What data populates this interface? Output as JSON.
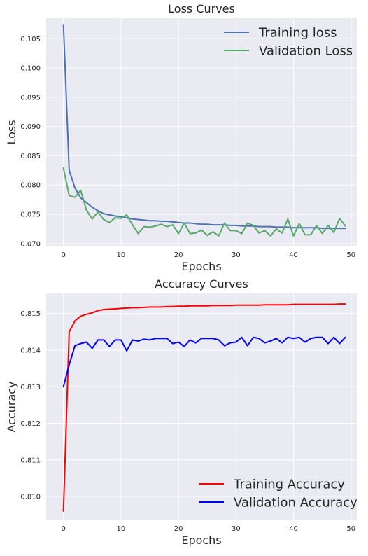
{
  "colors": {
    "plot_bg": "#EAEAF2",
    "grid": "#FFFFFF",
    "training_loss": "#4C72B0",
    "validation_loss": "#55A868",
    "training_accuracy": "#FF0000",
    "validation_accuracy": "#0000FF"
  },
  "chart_data": [
    {
      "type": "line",
      "title": "Loss Curves",
      "xlabel": "Epochs",
      "ylabel": "Loss",
      "xlim": [
        -3,
        51
      ],
      "ylim": [
        0.0695,
        0.1085
      ],
      "xticks": [
        0,
        10,
        20,
        30,
        40,
        50
      ],
      "xtick_labels": [
        "0",
        "10",
        "20",
        "30",
        "40",
        "50"
      ],
      "yticks": [
        0.07,
        0.075,
        0.08,
        0.085,
        0.09,
        0.095,
        0.1,
        0.105
      ],
      "ytick_labels": [
        "0.070",
        "0.075",
        "0.080",
        "0.085",
        "0.090",
        "0.095",
        "0.100",
        "0.105"
      ],
      "grid": true,
      "legend": "top-right",
      "series": [
        {
          "name": "Training loss",
          "values": [
            0.1074,
            0.0825,
            0.0795,
            0.0778,
            0.077,
            0.0762,
            0.0756,
            0.0751,
            0.0749,
            0.0747,
            0.0746,
            0.0744,
            0.0742,
            0.0741,
            0.074,
            0.0739,
            0.0739,
            0.0738,
            0.0738,
            0.0737,
            0.0736,
            0.0735,
            0.0735,
            0.0734,
            0.0733,
            0.0733,
            0.0732,
            0.0732,
            0.0732,
            0.0731,
            0.0731,
            0.073,
            0.073,
            0.073,
            0.0729,
            0.0729,
            0.0729,
            0.0728,
            0.0728,
            0.0728,
            0.0727,
            0.0727,
            0.0727,
            0.0727,
            0.0727,
            0.0726,
            0.0726,
            0.0726,
            0.0726,
            0.0726
          ]
        },
        {
          "name": "Validation Loss",
          "values": [
            0.0829,
            0.0782,
            0.0779,
            0.0791,
            0.0757,
            0.0742,
            0.0754,
            0.0741,
            0.0736,
            0.0744,
            0.0743,
            0.0749,
            0.0732,
            0.0717,
            0.0729,
            0.0728,
            0.073,
            0.0733,
            0.0729,
            0.0732,
            0.0717,
            0.0735,
            0.0717,
            0.0718,
            0.0723,
            0.0714,
            0.072,
            0.0713,
            0.0735,
            0.0722,
            0.0722,
            0.0717,
            0.0735,
            0.0731,
            0.0718,
            0.0722,
            0.0713,
            0.0725,
            0.0718,
            0.0742,
            0.0713,
            0.0734,
            0.0715,
            0.0715,
            0.0731,
            0.0717,
            0.0731,
            0.0719,
            0.0743,
            0.073
          ]
        }
      ]
    },
    {
      "type": "line",
      "title": "Accuracy Curves",
      "xlabel": "Epochs",
      "ylabel": "Accuracy",
      "xlim": [
        -3,
        51
      ],
      "ylim": [
        0.80935,
        0.81555
      ],
      "xticks": [
        0,
        10,
        20,
        30,
        40,
        50
      ],
      "xtick_labels": [
        "0",
        "10",
        "20",
        "30",
        "40",
        "50"
      ],
      "yticks": [
        0.81,
        0.811,
        0.812,
        0.813,
        0.814,
        0.815
      ],
      "ytick_labels": [
        "0.810",
        "0.811",
        "0.812",
        "0.813",
        "0.814",
        "0.815"
      ],
      "grid": true,
      "legend": "bottom-right",
      "series": [
        {
          "name": "Training Accuracy",
          "values": [
            0.8096,
            0.8145,
            0.8148,
            0.81493,
            0.81498,
            0.81502,
            0.81508,
            0.81511,
            0.81512,
            0.81513,
            0.81514,
            0.81515,
            0.81516,
            0.81516,
            0.81517,
            0.81518,
            0.81518,
            0.81518,
            0.81519,
            0.81519,
            0.8152,
            0.8152,
            0.81521,
            0.81521,
            0.81521,
            0.81521,
            0.81522,
            0.81522,
            0.81522,
            0.81522,
            0.81523,
            0.81523,
            0.81523,
            0.81523,
            0.81523,
            0.81524,
            0.81524,
            0.81524,
            0.81524,
            0.81524,
            0.81525,
            0.81525,
            0.81525,
            0.81525,
            0.81525,
            0.81525,
            0.81525,
            0.81525,
            0.81526,
            0.81526
          ]
        },
        {
          "name": "Validation Accuracy",
          "values": [
            0.813,
            0.8136,
            0.81412,
            0.81418,
            0.81422,
            0.81405,
            0.81428,
            0.81428,
            0.8141,
            0.81428,
            0.81428,
            0.81398,
            0.81428,
            0.81425,
            0.8143,
            0.81428,
            0.81432,
            0.81432,
            0.81432,
            0.81418,
            0.81422,
            0.8141,
            0.81428,
            0.8142,
            0.81432,
            0.81432,
            0.81432,
            0.81428,
            0.81412,
            0.8142,
            0.81422,
            0.81435,
            0.81412,
            0.81435,
            0.81432,
            0.8142,
            0.81425,
            0.81432,
            0.8142,
            0.81435,
            0.81432,
            0.81435,
            0.81422,
            0.81432,
            0.81435,
            0.81435,
            0.81418,
            0.81435,
            0.81418,
            0.81435
          ]
        }
      ]
    }
  ]
}
